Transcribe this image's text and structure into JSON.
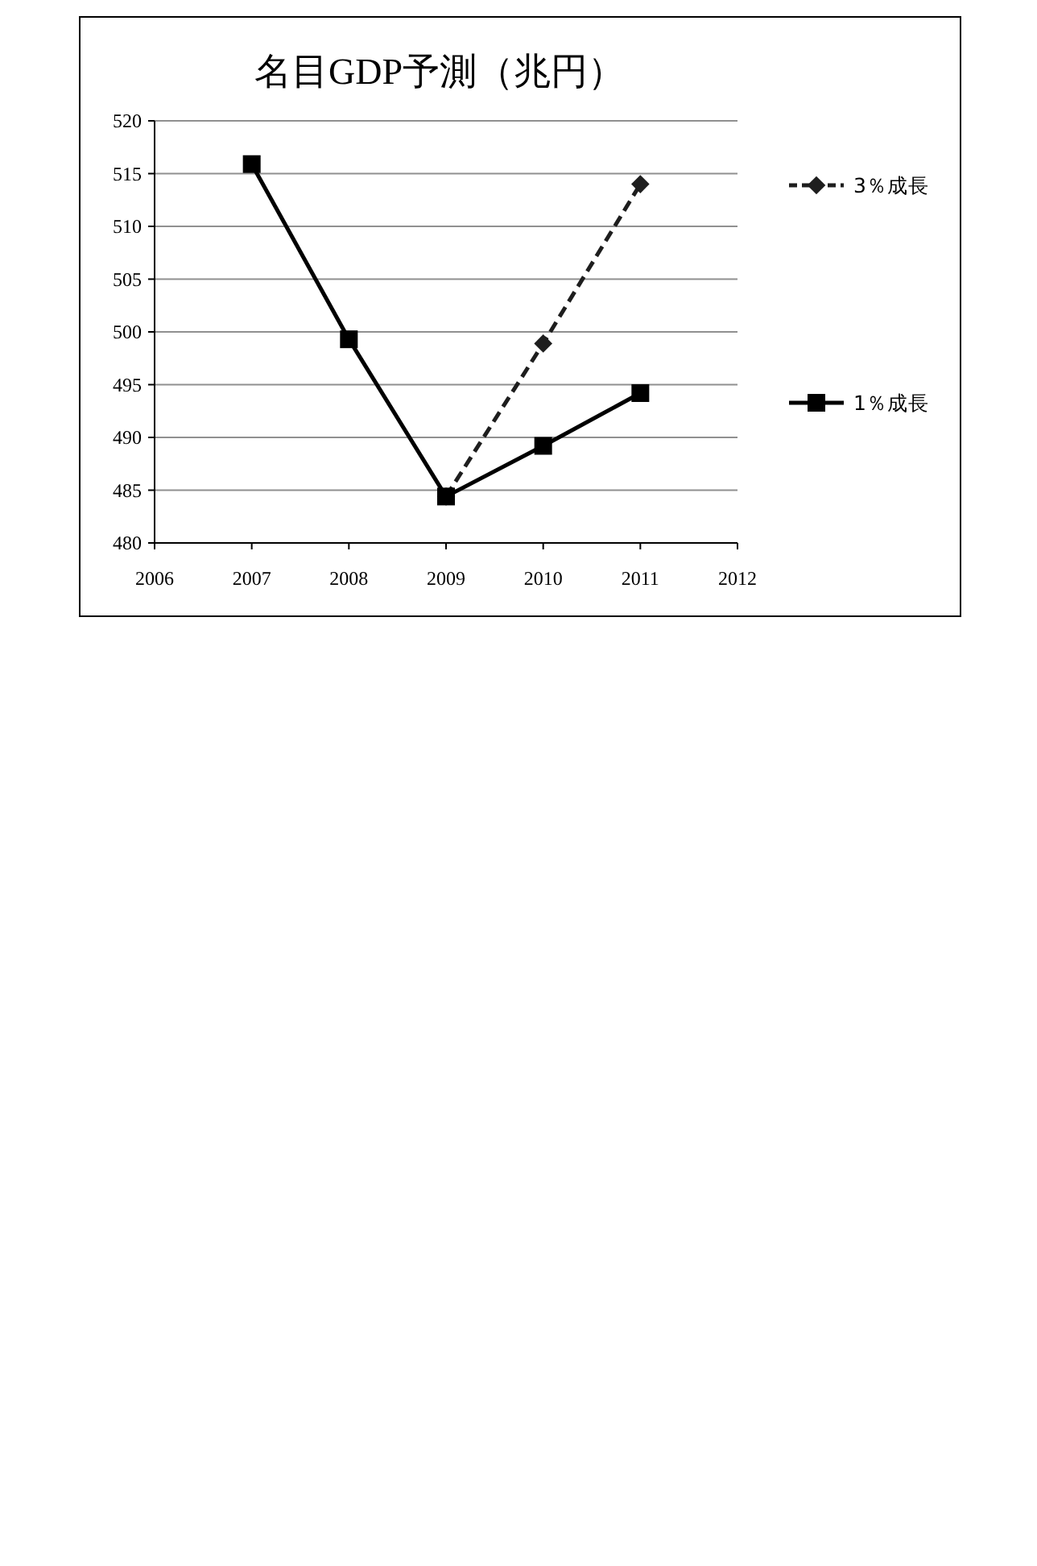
{
  "chart_data": {
    "type": "line",
    "title": "名目GDP予測（兆円）",
    "xlim": [
      2006,
      2012
    ],
    "xticks": [
      2006,
      2007,
      2008,
      2009,
      2010,
      2011,
      2012
    ],
    "ylim": [
      480,
      520
    ],
    "yticks": [
      480,
      485,
      490,
      495,
      500,
      505,
      510,
      515,
      520
    ],
    "grid": "y",
    "legend": "right",
    "series": [
      {
        "name": "3％成長",
        "color": "#1e1e1e",
        "marker": "diamond",
        "line_style": "dashed",
        "x": [
          2009,
          2010,
          2011
        ],
        "values": [
          484.4,
          498.9,
          514.0
        ]
      },
      {
        "name": "1％成長",
        "color": "#000000",
        "marker": "square",
        "line_style": "solid",
        "x": [
          2007,
          2008,
          2009,
          2010,
          2011
        ],
        "values": [
          515.9,
          499.3,
          484.4,
          489.2,
          494.2
        ]
      }
    ]
  }
}
